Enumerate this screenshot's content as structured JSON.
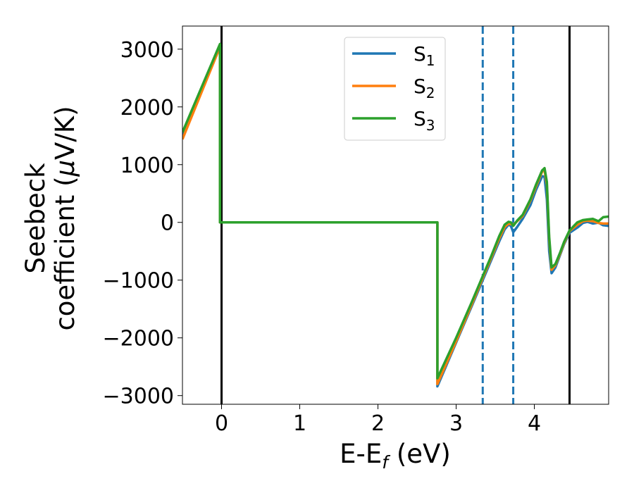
{
  "chart_data": {
    "type": "line",
    "xlabel": "E-E",
    "xlabel_sub": "f",
    "xlabel_unit": " (eV)",
    "ylabel_line1": "Seebeck",
    "ylabel_line2": "coefficient  (",
    "ylabel_mu": "μ",
    "ylabel_unit": "V/K)",
    "xlim": [
      -0.5,
      4.95
    ],
    "ylim": [
      -3150,
      3400
    ],
    "x_ticks": [
      0,
      1,
      2,
      3,
      4
    ],
    "x_tick_labels": [
      "0",
      "1",
      "2",
      "3",
      "4"
    ],
    "y_ticks": [
      -3000,
      -2000,
      -1000,
      0,
      1000,
      2000,
      3000
    ],
    "y_tick_labels": [
      "−3000",
      "−2000",
      "−1000",
      "0",
      "1000",
      "2000",
      "3000"
    ],
    "grid": false,
    "legend_position": "top-center",
    "vlines_solid": [
      0.0,
      4.45
    ],
    "vlines_dashed": [
      3.34,
      3.73
    ],
    "series": [
      {
        "name": "S",
        "sub": "1",
        "color": "#1f77b4",
        "points": [
          [
            -0.5,
            1480
          ],
          [
            -0.02,
            3040
          ],
          [
            -0.02,
            0
          ],
          [
            2.76,
            0
          ],
          [
            2.76,
            -2840
          ],
          [
            3.0,
            -2080
          ],
          [
            3.2,
            -1450
          ],
          [
            3.34,
            -1000
          ],
          [
            3.45,
            -650
          ],
          [
            3.55,
            -330
          ],
          [
            3.62,
            -120
          ],
          [
            3.67,
            -40
          ],
          [
            3.7,
            -60
          ],
          [
            3.73,
            -170
          ],
          [
            3.78,
            -80
          ],
          [
            3.85,
            60
          ],
          [
            3.95,
            300
          ],
          [
            4.02,
            560
          ],
          [
            4.1,
            800
          ],
          [
            4.13,
            790
          ],
          [
            4.16,
            400
          ],
          [
            4.19,
            -500
          ],
          [
            4.22,
            -880
          ],
          [
            4.27,
            -780
          ],
          [
            4.33,
            -560
          ],
          [
            4.38,
            -380
          ],
          [
            4.45,
            -180
          ],
          [
            4.55,
            -90
          ],
          [
            4.62,
            -10
          ],
          [
            4.68,
            10
          ],
          [
            4.75,
            -20
          ],
          [
            4.82,
            -5
          ],
          [
            4.88,
            -50
          ],
          [
            4.95,
            -60
          ]
        ]
      },
      {
        "name": "S",
        "sub": "2",
        "color": "#ff7f0e",
        "points": [
          [
            -0.5,
            1440
          ],
          [
            -0.02,
            3040
          ],
          [
            -0.02,
            0
          ],
          [
            2.76,
            0
          ],
          [
            2.76,
            -2800
          ],
          [
            3.0,
            -2060
          ],
          [
            3.2,
            -1420
          ],
          [
            3.34,
            -960
          ],
          [
            3.45,
            -610
          ],
          [
            3.55,
            -280
          ],
          [
            3.62,
            -80
          ],
          [
            3.67,
            -20
          ],
          [
            3.7,
            -30
          ],
          [
            3.73,
            -40
          ],
          [
            3.78,
            20
          ],
          [
            3.85,
            110
          ],
          [
            3.95,
            380
          ],
          [
            4.02,
            620
          ],
          [
            4.1,
            880
          ],
          [
            4.13,
            900
          ],
          [
            4.16,
            650
          ],
          [
            4.19,
            -300
          ],
          [
            4.22,
            -820
          ],
          [
            4.27,
            -740
          ],
          [
            4.33,
            -540
          ],
          [
            4.38,
            -360
          ],
          [
            4.45,
            -150
          ],
          [
            4.55,
            -40
          ],
          [
            4.62,
            20
          ],
          [
            4.68,
            30
          ],
          [
            4.75,
            20
          ],
          [
            4.82,
            -10
          ],
          [
            4.88,
            -20
          ],
          [
            4.95,
            -20
          ]
        ]
      },
      {
        "name": "S",
        "sub": "3",
        "color": "#2ca02c",
        "points": [
          [
            -0.5,
            1560
          ],
          [
            -0.02,
            3090
          ],
          [
            -0.02,
            0
          ],
          [
            2.76,
            0
          ],
          [
            2.76,
            -2700
          ],
          [
            3.0,
            -2000
          ],
          [
            3.2,
            -1380
          ],
          [
            3.34,
            -930
          ],
          [
            3.45,
            -580
          ],
          [
            3.55,
            -240
          ],
          [
            3.62,
            -40
          ],
          [
            3.67,
            10
          ],
          [
            3.7,
            0
          ],
          [
            3.73,
            -60
          ],
          [
            3.78,
            30
          ],
          [
            3.85,
            130
          ],
          [
            3.95,
            400
          ],
          [
            4.02,
            650
          ],
          [
            4.1,
            900
          ],
          [
            4.13,
            940
          ],
          [
            4.16,
            700
          ],
          [
            4.19,
            -250
          ],
          [
            4.22,
            -780
          ],
          [
            4.27,
            -720
          ],
          [
            4.33,
            -520
          ],
          [
            4.38,
            -340
          ],
          [
            4.45,
            -140
          ],
          [
            4.55,
            0
          ],
          [
            4.62,
            40
          ],
          [
            4.68,
            50
          ],
          [
            4.75,
            60
          ],
          [
            4.82,
            20
          ],
          [
            4.88,
            90
          ],
          [
            4.95,
            100
          ]
        ]
      }
    ]
  }
}
